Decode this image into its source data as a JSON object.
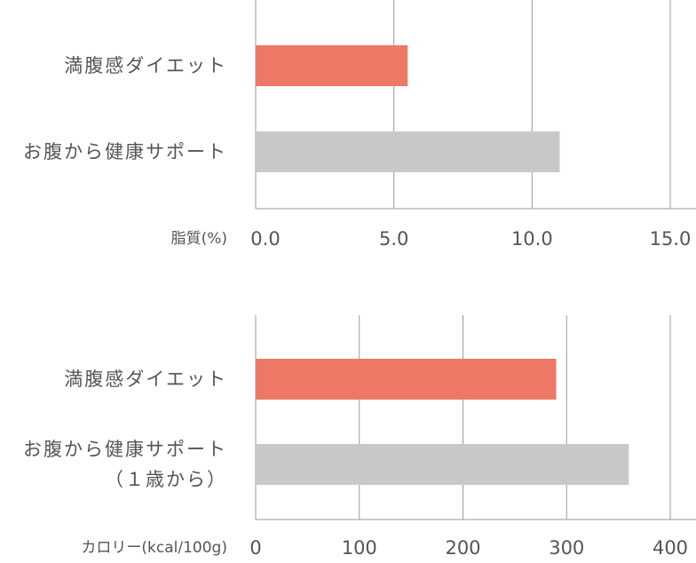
{
  "colors": {
    "highlight": "#ee7866",
    "neutral": "#c8c8c8",
    "grid": "#999999",
    "text": "#555555"
  },
  "chart_data": [
    {
      "type": "bar",
      "orientation": "horizontal",
      "xlabel": "脂質(%)",
      "categories": [
        "満腹感ダイエット",
        "お腹から健康サポート"
      ],
      "category_lines": [
        [
          "満腹感ダイエット"
        ],
        [
          "お腹から健康サポート"
        ]
      ],
      "values": [
        5.5,
        11.0
      ],
      "xlim": [
        0,
        15
      ],
      "ticks": [
        "0.0",
        "5.0",
        "10.0",
        "15.0"
      ],
      "tick_values": [
        0,
        5,
        10,
        15
      ],
      "grid": true
    },
    {
      "type": "bar",
      "orientation": "horizontal",
      "xlabel": "カロリー(kcal/100g)",
      "categories": [
        "満腹感ダイエット",
        "お腹から健康サポート（１歳から）"
      ],
      "category_lines": [
        [
          "満腹感ダイエット"
        ],
        [
          "お腹から健康サポート",
          "（１歳から）"
        ]
      ],
      "values": [
        290,
        360
      ],
      "xlim": [
        0,
        400
      ],
      "ticks": [
        "0",
        "100",
        "200",
        "300",
        "400"
      ],
      "tick_values": [
        0,
        100,
        200,
        300,
        400
      ],
      "grid": true
    }
  ]
}
